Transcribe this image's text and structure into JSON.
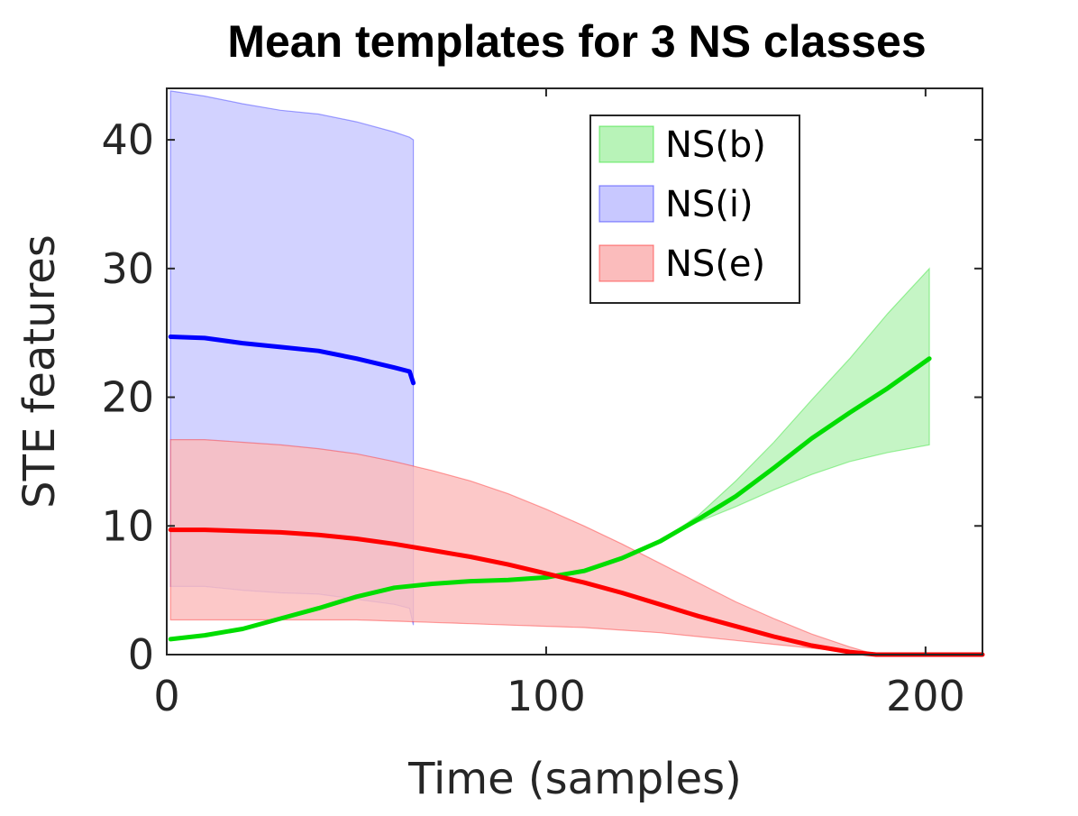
{
  "chart_data": {
    "type": "line",
    "title": "Mean templates for 3 NS classes",
    "xlabel": "Time (samples)",
    "ylabel": "STE features",
    "xlim": [
      0,
      215
    ],
    "ylim": [
      0,
      44
    ],
    "xticks": [
      0,
      100,
      200
    ],
    "yticks": [
      0,
      10,
      20,
      30,
      40
    ],
    "grid": false,
    "legend_placement": "top-right",
    "series": [
      {
        "name": "NS(b)",
        "color": "#00dd00",
        "band_color": "#b8f3b8",
        "x": [
          1,
          10,
          20,
          30,
          40,
          50,
          60,
          70,
          80,
          90,
          100,
          110,
          120,
          130,
          140,
          150,
          160,
          170,
          180,
          190,
          201
        ],
        "mean": [
          1.2,
          1.5,
          2.0,
          2.8,
          3.6,
          4.5,
          5.2,
          5.5,
          5.7,
          5.8,
          6.0,
          6.5,
          7.5,
          8.8,
          10.5,
          12.3,
          14.5,
          16.8,
          18.8,
          20.7,
          23.0
        ],
        "upper": [
          1.2,
          1.5,
          2.0,
          2.8,
          3.6,
          4.5,
          5.2,
          5.5,
          5.7,
          5.8,
          6.0,
          6.5,
          7.5,
          8.8,
          10.8,
          13.5,
          16.5,
          19.8,
          23.0,
          26.5,
          30.0
        ],
        "lower": [
          1.2,
          1.5,
          2.0,
          2.8,
          3.6,
          4.5,
          5.2,
          5.5,
          5.7,
          5.8,
          6.0,
          6.5,
          7.5,
          8.8,
          10.3,
          11.5,
          12.8,
          14.0,
          15.0,
          15.7,
          16.3
        ]
      },
      {
        "name": "NS(i)",
        "color": "#0000ff",
        "band_color": "#c8c8ff",
        "x": [
          1,
          10,
          20,
          30,
          40,
          50,
          60,
          64,
          65
        ],
        "mean": [
          24.7,
          24.6,
          24.2,
          23.9,
          23.6,
          23.0,
          22.3,
          22.0,
          21.1
        ],
        "upper": [
          43.8,
          43.4,
          42.8,
          42.3,
          42.0,
          41.4,
          40.6,
          40.2,
          40.0
        ],
        "lower": [
          5.3,
          5.3,
          5.0,
          4.8,
          4.7,
          4.3,
          3.9,
          3.6,
          2.3
        ]
      },
      {
        "name": "NS(e)",
        "color": "#ff0000",
        "band_color": "#fbbcbc",
        "x": [
          1,
          10,
          20,
          30,
          40,
          50,
          60,
          70,
          80,
          90,
          100,
          110,
          120,
          130,
          140,
          150,
          160,
          170,
          180,
          187,
          200,
          215
        ],
        "mean": [
          9.7,
          9.7,
          9.6,
          9.5,
          9.3,
          9.0,
          8.6,
          8.1,
          7.6,
          7.0,
          6.3,
          5.6,
          4.8,
          3.9,
          3.0,
          2.2,
          1.4,
          0.7,
          0.2,
          0,
          0,
          0
        ],
        "upper": [
          16.7,
          16.7,
          16.5,
          16.3,
          16.0,
          15.6,
          15.0,
          14.3,
          13.5,
          12.5,
          11.3,
          10.0,
          8.6,
          7.1,
          5.6,
          4.1,
          2.8,
          1.6,
          0.6,
          0,
          0,
          0
        ],
        "lower": [
          2.7,
          2.7,
          2.7,
          2.7,
          2.7,
          2.7,
          2.6,
          2.5,
          2.4,
          2.3,
          2.2,
          2.1,
          1.9,
          1.7,
          1.4,
          1.1,
          0.8,
          0.5,
          0.2,
          0,
          0,
          0
        ]
      }
    ]
  }
}
